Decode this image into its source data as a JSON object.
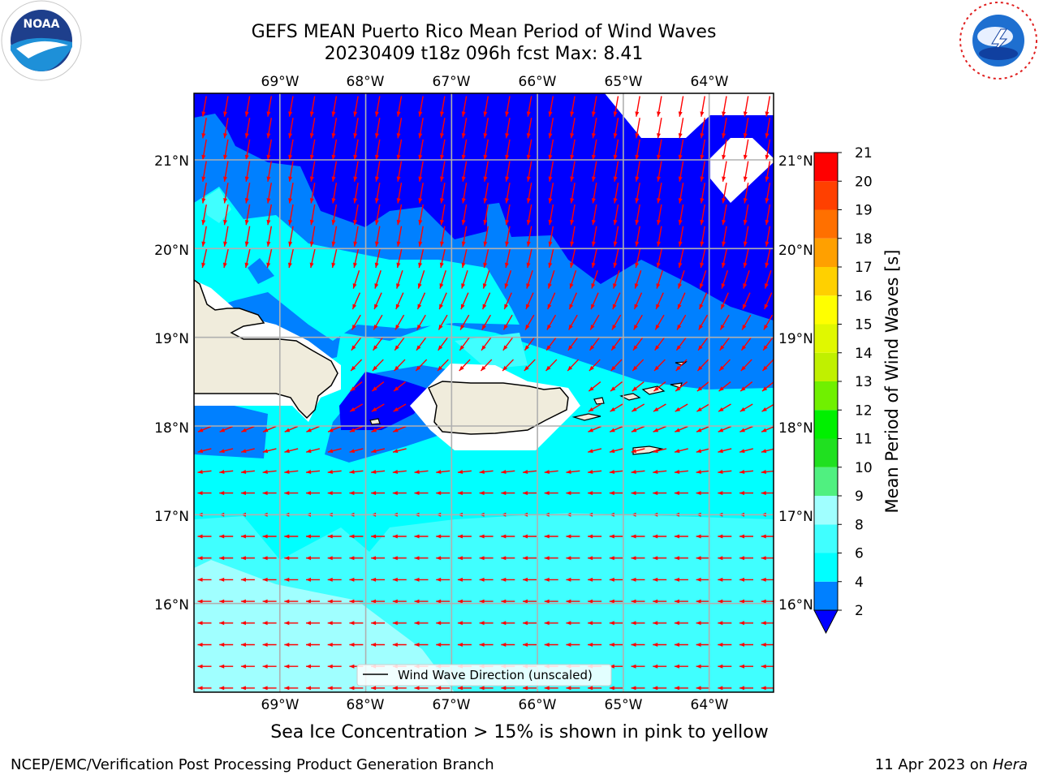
{
  "title": {
    "line1": "GEFS MEAN Puerto Rico Mean Period of Wind Waves",
    "line2": "20230409 t18z 096h fcst   Max: 8.41"
  },
  "caption": "Sea Ice Concentration > 15% is shown in pink to yellow",
  "footer": {
    "left": "NCEP/EMC/Verification Post Processing Product Generation Branch",
    "date": "11 Apr 2023 on ",
    "machine": "Hera"
  },
  "logos": {
    "left": "noaa-logo",
    "right": "nws-logo"
  },
  "map": {
    "lon_ticks": [
      "69°W",
      "68°W",
      "67°W",
      "66°W",
      "65°W",
      "64°W"
    ],
    "lat_ticks": [
      "21°N",
      "20°N",
      "19°N",
      "18°N",
      "17°N",
      "16°N"
    ],
    "lon_range": [
      -70.0,
      -63.25
    ],
    "lat_range": [
      15.0,
      21.75
    ],
    "legend_label": "Wind Wave Direction (unscaled)",
    "arrow_color": "#ff0000"
  },
  "colorbar": {
    "label": "Mean Period of Wind Waves [s]",
    "ticks": [
      "2",
      "4",
      "6",
      "8",
      "9",
      "10",
      "11",
      "12",
      "13",
      "14",
      "15",
      "16",
      "17",
      "18",
      "19",
      "20",
      "21"
    ],
    "colors": [
      "#0000ff",
      "#0080ff",
      "#00ffff",
      "#40ffff",
      "#a0ffff",
      "#50f080",
      "#20e020",
      "#00f000",
      "#70f000",
      "#c0f000",
      "#e0f800",
      "#ffff00",
      "#ffd000",
      "#ffa000",
      "#ff7000",
      "#ff4000",
      "#ff0000"
    ]
  }
}
